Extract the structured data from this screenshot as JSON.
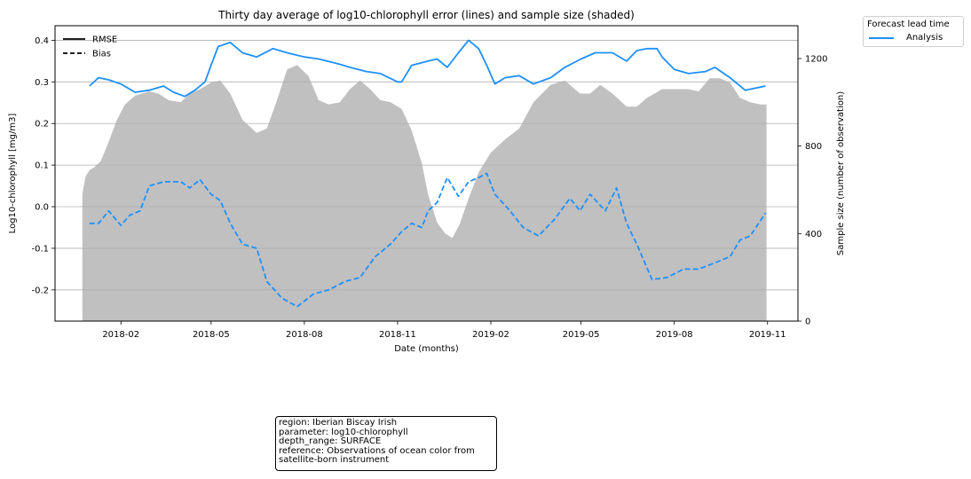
{
  "chart_data": {
    "type": "line",
    "title": "Thirty day average of log10-chlorophyll error (lines) and sample size (shaded)",
    "xlabel": "Date (months)",
    "ylabel": "Log10-chlorophyll [mg/m3]",
    "ylabel_right": "Sample size (number of observation)",
    "ylim": [
      -0.275,
      0.435
    ],
    "ylim_right": [
      0,
      1350
    ],
    "xlim": [
      "2017-11-28",
      "2019-12-01"
    ],
    "x_ticks": [
      "2018-02",
      "2018-05",
      "2018-08",
      "2018-11",
      "2019-02",
      "2019-05",
      "2019-08",
      "2019-11"
    ],
    "y_ticks": [
      -0.2,
      -0.1,
      0.0,
      0.1,
      0.2,
      0.3,
      0.4
    ],
    "y_ticks_right": [
      0,
      400,
      800,
      1200
    ],
    "grid": "horizontal",
    "line_style_legend": [
      {
        "label": "RMSE",
        "style": "solid"
      },
      {
        "label": "Bias",
        "style": "dashed"
      }
    ],
    "legend": {
      "title": "Forecast lead time",
      "placement": "outside-top-right",
      "entries": [
        {
          "label": "Analysis",
          "color": "#1e90ff"
        }
      ]
    },
    "series": [
      {
        "name": "RMSE",
        "color": "#1e90ff",
        "style": "solid",
        "x": [
          "2018-01-01",
          "2018-01-10",
          "2018-01-20",
          "2018-02-01",
          "2018-02-15",
          "2018-03-01",
          "2018-03-15",
          "2018-03-25",
          "2018-04-05",
          "2018-04-15",
          "2018-04-25",
          "2018-05-01",
          "2018-05-08",
          "2018-05-20",
          "2018-06-01",
          "2018-06-15",
          "2018-07-01",
          "2018-07-15",
          "2018-08-01",
          "2018-08-15",
          "2018-09-01",
          "2018-09-15",
          "2018-10-01",
          "2018-10-15",
          "2018-11-01",
          "2018-11-05",
          "2018-11-15",
          "2018-12-01",
          "2018-12-10",
          "2018-12-20",
          "2018-12-31",
          "2019-01-10",
          "2019-01-20",
          "2019-01-28",
          "2019-02-05",
          "2019-02-15",
          "2019-03-01",
          "2019-03-15",
          "2019-04-01",
          "2019-04-15",
          "2019-05-01",
          "2019-05-15",
          "2019-06-01",
          "2019-06-15",
          "2019-06-25",
          "2019-07-05",
          "2019-07-15",
          "2019-07-20",
          "2019-08-01",
          "2019-08-15",
          "2019-09-01",
          "2019-09-10",
          "2019-09-25",
          "2019-10-10",
          "2019-10-20",
          "2019-10-30"
        ],
        "values": [
          0.29,
          0.31,
          0.305,
          0.295,
          0.275,
          0.28,
          0.29,
          0.275,
          0.265,
          0.28,
          0.3,
          0.34,
          0.385,
          0.395,
          0.37,
          0.36,
          0.38,
          0.37,
          0.36,
          0.355,
          0.345,
          0.335,
          0.325,
          0.32,
          0.3,
          0.3,
          0.34,
          0.35,
          0.355,
          0.335,
          0.37,
          0.4,
          0.38,
          0.34,
          0.295,
          0.31,
          0.315,
          0.295,
          0.31,
          0.335,
          0.355,
          0.37,
          0.37,
          0.35,
          0.375,
          0.38,
          0.38,
          0.36,
          0.33,
          0.32,
          0.325,
          0.335,
          0.31,
          0.28,
          0.285,
          0.29
        ]
      },
      {
        "name": "Bias",
        "color": "#1e90ff",
        "style": "dashed",
        "x": [
          "2018-01-01",
          "2018-01-10",
          "2018-01-20",
          "2018-02-01",
          "2018-02-10",
          "2018-02-20",
          "2018-03-01",
          "2018-03-15",
          "2018-04-01",
          "2018-04-10",
          "2018-04-20",
          "2018-05-01",
          "2018-05-10",
          "2018-05-20",
          "2018-06-01",
          "2018-06-15",
          "2018-06-25",
          "2018-07-10",
          "2018-07-25",
          "2018-08-10",
          "2018-08-25",
          "2018-09-10",
          "2018-09-25",
          "2018-10-10",
          "2018-10-25",
          "2018-11-05",
          "2018-11-15",
          "2018-11-25",
          "2018-12-01",
          "2018-12-10",
          "2018-12-20",
          "2018-12-31",
          "2019-01-10",
          "2019-01-20",
          "2019-01-28",
          "2019-02-05",
          "2019-02-20",
          "2019-03-05",
          "2019-03-20",
          "2019-04-05",
          "2019-04-20",
          "2019-04-30",
          "2019-05-10",
          "2019-05-25",
          "2019-06-05",
          "2019-06-15",
          "2019-06-25",
          "2019-07-10",
          "2019-07-25",
          "2019-08-10",
          "2019-08-25",
          "2019-09-10",
          "2019-09-25",
          "2019-10-05",
          "2019-10-15",
          "2019-10-30"
        ],
        "values": [
          -0.04,
          -0.04,
          -0.01,
          -0.045,
          -0.02,
          -0.01,
          0.05,
          0.06,
          0.06,
          0.045,
          0.065,
          0.03,
          0.015,
          -0.04,
          -0.09,
          -0.1,
          -0.18,
          -0.22,
          -0.24,
          -0.21,
          -0.2,
          -0.18,
          -0.17,
          -0.12,
          -0.09,
          -0.06,
          -0.04,
          -0.05,
          -0.01,
          0.01,
          0.07,
          0.025,
          0.06,
          0.07,
          0.08,
          0.03,
          -0.01,
          -0.05,
          -0.07,
          -0.03,
          0.02,
          -0.01,
          0.03,
          -0.01,
          0.045,
          -0.04,
          -0.09,
          -0.175,
          -0.17,
          -0.15,
          -0.15,
          -0.135,
          -0.12,
          -0.08,
          -0.07,
          -0.015
        ]
      },
      {
        "name": "Sample size",
        "color": "#c0c0c0",
        "style": "area",
        "axis": "right",
        "x": [
          "2017-12-25",
          "2017-12-28",
          "2018-01-01",
          "2018-01-05",
          "2018-01-12",
          "2018-01-20",
          "2018-01-28",
          "2018-02-05",
          "2018-02-15",
          "2018-03-01",
          "2018-03-10",
          "2018-03-20",
          "2018-04-01",
          "2018-04-10",
          "2018-04-20",
          "2018-05-01",
          "2018-05-10",
          "2018-05-20",
          "2018-06-01",
          "2018-06-15",
          "2018-06-25",
          "2018-07-05",
          "2018-07-15",
          "2018-07-25",
          "2018-08-05",
          "2018-08-15",
          "2018-08-25",
          "2018-09-05",
          "2018-09-15",
          "2018-09-25",
          "2018-10-05",
          "2018-10-15",
          "2018-10-25",
          "2018-11-05",
          "2018-11-15",
          "2018-11-25",
          "2018-12-01",
          "2018-12-10",
          "2018-12-18",
          "2018-12-25",
          "2019-01-01",
          "2019-01-10",
          "2019-01-20",
          "2019-02-01",
          "2019-02-15",
          "2019-03-01",
          "2019-03-15",
          "2019-04-01",
          "2019-04-15",
          "2019-04-30",
          "2019-05-10",
          "2019-05-20",
          "2019-06-01",
          "2019-06-15",
          "2019-06-25",
          "2019-07-05",
          "2019-07-20",
          "2019-08-01",
          "2019-08-15",
          "2019-08-25",
          "2019-09-05",
          "2019-09-15",
          "2019-09-25",
          "2019-10-05",
          "2019-10-15",
          "2019-10-25",
          "2019-10-31"
        ],
        "values": [
          580,
          660,
          690,
          700,
          730,
          820,
          920,
          990,
          1030,
          1050,
          1040,
          1010,
          1000,
          1040,
          1060,
          1090,
          1100,
          1040,
          920,
          860,
          880,
          1010,
          1150,
          1170,
          1120,
          1010,
          990,
          1000,
          1060,
          1100,
          1060,
          1010,
          1000,
          970,
          870,
          720,
          580,
          450,
          400,
          380,
          440,
          560,
          680,
          770,
          830,
          880,
          1000,
          1080,
          1100,
          1040,
          1040,
          1080,
          1040,
          980,
          980,
          1020,
          1060,
          1060,
          1060,
          1050,
          1110,
          1110,
          1090,
          1020,
          1000,
          990,
          990
        ]
      }
    ]
  },
  "info_box": {
    "region": "region: Iberian Biscay Irish",
    "parameter": "parameter: log10-chlorophyll",
    "depth_range": "depth_range: SURFACE",
    "reference_1": "reference: Observations of ocean color from",
    "reference_2": "satellite-born instrument"
  }
}
